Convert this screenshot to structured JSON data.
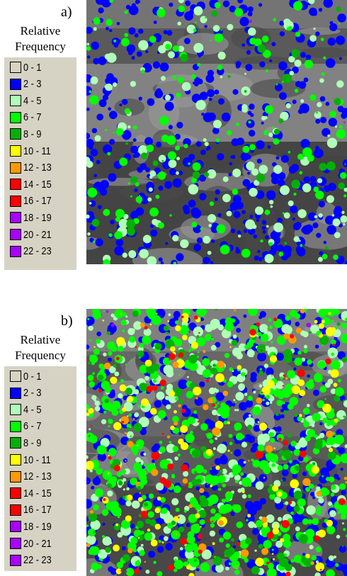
{
  "panels": [
    {
      "label": "a)",
      "legend": {
        "title_lines": [
          "Relative",
          "Frequency"
        ],
        "entries": [
          {
            "label": "0 - 1",
            "color": "#d8d4c0"
          },
          {
            "label": "2 - 3",
            "color": "#0000ff"
          },
          {
            "label": "4 - 5",
            "color": "#b0ffb8"
          },
          {
            "label": "6 - 7",
            "color": "#00ff00"
          },
          {
            "label": "8 - 9",
            "color": "#00b000"
          },
          {
            "label": "10 - 11",
            "color": "#ffff00"
          },
          {
            "label": "12 - 13",
            "color": "#ff9900"
          },
          {
            "label": "14 - 15",
            "color": "#ff0000"
          },
          {
            "label": "16 - 17",
            "color": "#ff0000"
          },
          {
            "label": "18 - 19",
            "color": "#aa00ff"
          },
          {
            "label": "20 - 21",
            "color": "#aa00ff"
          },
          {
            "label": "22 - 23",
            "color": "#aa00ff"
          }
        ]
      }
    },
    {
      "label": "b)",
      "legend": {
        "title_lines": [
          "Relative",
          "Frequency"
        ],
        "entries": [
          {
            "label": "0 - 1",
            "color": "#d8d4c0"
          },
          {
            "label": "2 - 3",
            "color": "#0000ff"
          },
          {
            "label": "4 - 5",
            "color": "#b0ffb8"
          },
          {
            "label": "6 - 7",
            "color": "#00ff00"
          },
          {
            "label": "8 - 9",
            "color": "#00b000"
          },
          {
            "label": "10 - 11",
            "color": "#ffff00"
          },
          {
            "label": "12 - 13",
            "color": "#ff9900"
          },
          {
            "label": "14 - 15",
            "color": "#ff0000"
          },
          {
            "label": "16 - 17",
            "color": "#ff0000"
          },
          {
            "label": "18 - 19",
            "color": "#aa00ff"
          },
          {
            "label": "20 - 21",
            "color": "#aa00ff"
          },
          {
            "label": "22 - 23",
            "color": "#aa00ff"
          }
        ]
      }
    }
  ]
}
